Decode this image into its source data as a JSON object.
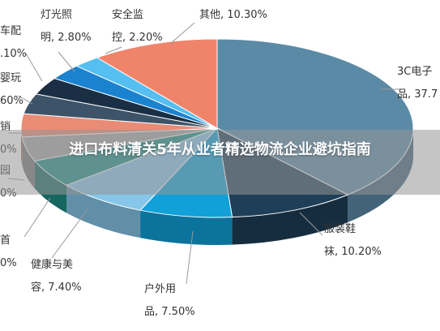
{
  "chart_data": {
    "type": "pie",
    "style": "3d-pie",
    "slices": [
      {
        "label_lines": [
          "3C电子",
          "品, 37.7"
        ],
        "value": 37.7,
        "color": "#5b8aa6"
      },
      {
        "label_lines": [
          "服装鞋",
          "袜, 10.20%"
        ],
        "value": 10.2,
        "color": "#1f3f58"
      },
      {
        "label_lines": [
          "户外用",
          "品, 7.50%"
        ],
        "value": 7.5,
        "color": "#11a0d8"
      },
      {
        "label_lines": [
          "健康与美",
          "容, 7.40%"
        ],
        "value": 7.4,
        "color": "#87c6e8"
      },
      {
        "label_lines": [
          "首",
          "0%"
        ],
        "value": 5.0,
        "color": "#1d8d86"
      },
      {
        "label_lines": [
          "园",
          "0%"
        ],
        "value": 4.3,
        "color": "#a7a7a7"
      },
      {
        "label_lines": [
          "销",
          "0%"
        ],
        "value": 4.1,
        "color": "#e88c76"
      },
      {
        "label_lines": [
          "婴玩",
          "60%"
        ],
        "value": 3.6,
        "color": "#3d5368"
      },
      {
        "label_lines": [
          "车配",
          ".10%"
        ],
        "value": 3.1,
        "color": "#1a2f44"
      },
      {
        "label_lines": [
          "灯光照",
          "明, 2.80%"
        ],
        "value": 2.8,
        "color": "#1b82cf"
      },
      {
        "label_lines": [
          "安全监",
          "控, 2.20%"
        ],
        "value": 2.2,
        "color": "#54bff0"
      },
      {
        "label_lines": [
          "其他, 10.30%"
        ],
        "value": 10.3,
        "color": "#f0846b"
      }
    ]
  },
  "banner": {
    "title": "进口布料清关5年从业者精选物流企业避坑指南"
  }
}
